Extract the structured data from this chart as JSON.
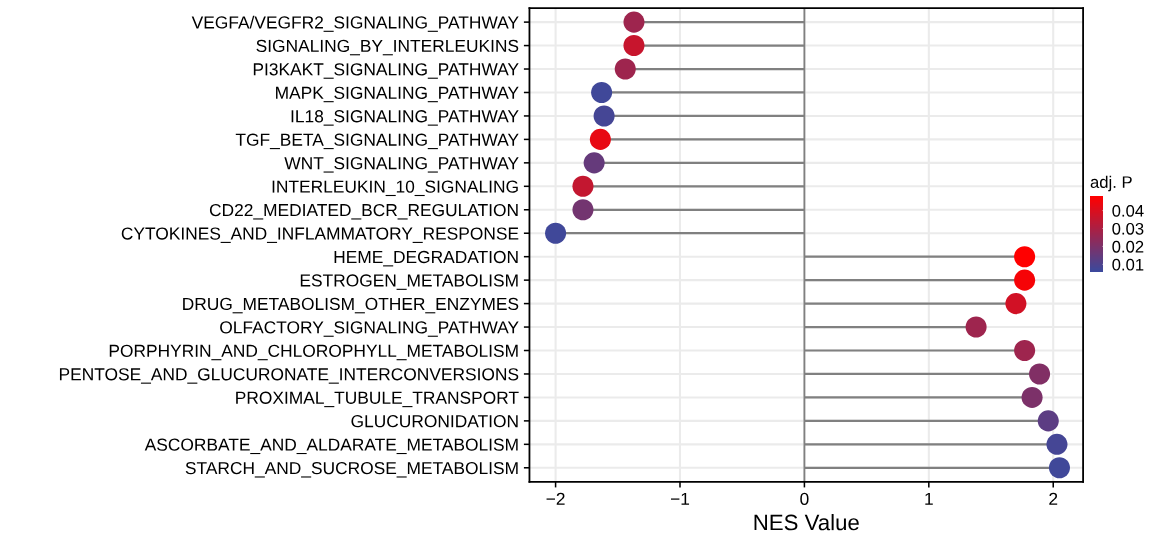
{
  "chart_data": {
    "type": "lollipop",
    "orientation": "horizontal",
    "xlabel": "NES Value",
    "clabel": "adj. P",
    "categories": [
      "VEGFA/VEGFR2_SIGNALING_PATHWAY",
      "SIGNALING_BY_INTERLEUKINS",
      "PI3KAKT_SIGNALING_PATHWAY",
      "MAPK_SIGNALING_PATHWAY",
      "IL18_SIGNALING_PATHWAY",
      "TGF_BETA_SIGNALING_PATHWAY",
      "WNT_SIGNALING_PATHWAY",
      "INTERLEUKIN_10_SIGNALING",
      "CD22_MEDIATED_BCR_REGULATION",
      "CYTOKINES_AND_INFLAMMATORY_RESPONSE",
      "HEME_DEGRADATION",
      "ESTROGEN_METABOLISM",
      "DRUG_METABOLISM_OTHER_ENZYMES",
      "OLFACTORY_SIGNALING_PATHWAY",
      "PORPHYRIN_AND_CHLOROPHYLL_METABOLISM",
      "PENTOSE_AND_GLUCURONATE_INTERCONVERSIONS",
      "PROXIMAL_TUBULE_TRANSPORT",
      "GLUCURONIDATION",
      "ASCORBATE_AND_ALDARATE_METABOLISM",
      "STARCH_AND_SUCROSE_METABOLISM"
    ],
    "values": [
      -1.37,
      -1.37,
      -1.44,
      -1.63,
      -1.61,
      -1.64,
      -1.69,
      -1.78,
      -1.78,
      -2.0,
      1.77,
      1.77,
      1.7,
      1.38,
      1.77,
      1.89,
      1.83,
      1.96,
      2.03,
      2.05
    ],
    "cvalues": [
      0.027,
      0.036,
      0.027,
      0.007,
      0.008,
      0.043,
      0.015,
      0.035,
      0.018,
      0.007,
      0.048,
      0.046,
      0.038,
      0.027,
      0.027,
      0.021,
      0.02,
      0.013,
      0.008,
      0.007
    ],
    "clim": [
      0.0056,
      0.048
    ],
    "cticks": [
      0.01,
      0.02,
      0.03,
      0.04
    ],
    "xlim": [
      -2.21,
      2.24
    ],
    "xticks": [
      {
        "value": -2,
        "label": "−2"
      },
      {
        "value": -1,
        "label": "−1"
      },
      0,
      1,
      2
    ],
    "ref_lines": [
      {
        "axis": "x",
        "value": 0,
        "label": null,
        "color": "#808080"
      }
    ],
    "grid": true,
    "marker": "circle"
  }
}
